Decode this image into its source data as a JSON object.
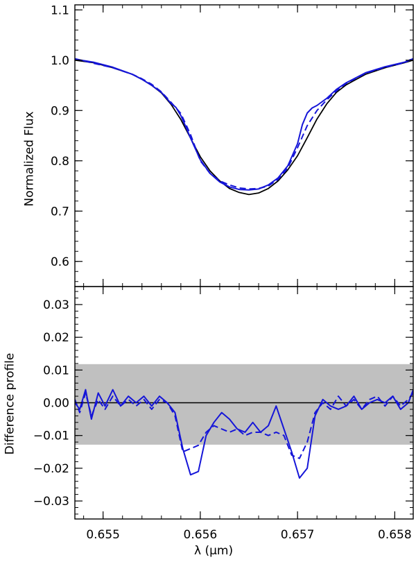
{
  "chart_data": [
    {
      "type": "line",
      "ylabel": "Normalized Flux",
      "xlim": [
        0.65471,
        0.65819
      ],
      "ylim": [
        0.55,
        1.11
      ],
      "x_ticks": [
        0.655,
        0.656,
        0.657,
        0.658
      ],
      "y_ticks": [
        0.6,
        0.7,
        0.8,
        0.9,
        1.0,
        1.1
      ],
      "y_tick_labels": [
        "0.6",
        "0.7",
        "0.8",
        "0.9",
        "1.0",
        "1.1"
      ],
      "series": [
        {
          "color": "#000000",
          "style": "solid",
          "x": [
            0.65471,
            0.6549,
            0.6551,
            0.6553,
            0.6554,
            0.6555,
            0.6556,
            0.6557,
            0.6558,
            0.6559,
            0.656,
            0.6561,
            0.6562,
            0.6563,
            0.6564,
            0.6565,
            0.6566,
            0.6567,
            0.6568,
            0.6569,
            0.657,
            0.6571,
            0.6572,
            0.6573,
            0.6574,
            0.6575,
            0.6577,
            0.6579,
            0.6581,
            0.65819
          ],
          "y": [
            1.0,
            0.995,
            0.985,
            0.972,
            0.962,
            0.95,
            0.935,
            0.912,
            0.882,
            0.845,
            0.808,
            0.78,
            0.76,
            0.745,
            0.737,
            0.733,
            0.736,
            0.745,
            0.76,
            0.782,
            0.81,
            0.846,
            0.883,
            0.913,
            0.936,
            0.951,
            0.972,
            0.985,
            0.995,
            1.0
          ]
        },
        {
          "color": "#1515d8",
          "style": "solid",
          "x": [
            0.65471,
            0.6549,
            0.6551,
            0.6553,
            0.6554,
            0.6555,
            0.6556,
            0.6557,
            0.65575,
            0.6558,
            0.65585,
            0.6559,
            0.656,
            0.6561,
            0.6562,
            0.6563,
            0.6564,
            0.6565,
            0.6566,
            0.6567,
            0.6568,
            0.6569,
            0.657,
            0.65705,
            0.6571,
            0.65715,
            0.6572,
            0.6573,
            0.6574,
            0.6575,
            0.6577,
            0.6579,
            0.6581,
            0.65819
          ],
          "y": [
            1.002,
            0.996,
            0.986,
            0.972,
            0.962,
            0.95,
            0.936,
            0.914,
            0.906,
            0.89,
            0.868,
            0.845,
            0.802,
            0.775,
            0.758,
            0.748,
            0.743,
            0.742,
            0.744,
            0.752,
            0.766,
            0.79,
            0.834,
            0.872,
            0.895,
            0.905,
            0.91,
            0.924,
            0.942,
            0.955,
            0.975,
            0.987,
            0.996,
            1.003
          ]
        },
        {
          "color": "#1515d8",
          "style": "dashed",
          "x": [
            0.65471,
            0.6549,
            0.6551,
            0.6553,
            0.6554,
            0.6555,
            0.6556,
            0.6557,
            0.6558,
            0.6559,
            0.656,
            0.6561,
            0.6562,
            0.6563,
            0.6564,
            0.6565,
            0.6566,
            0.6567,
            0.6568,
            0.6569,
            0.657,
            0.6571,
            0.6572,
            0.6573,
            0.6574,
            0.6575,
            0.6577,
            0.6579,
            0.6581,
            0.65819
          ],
          "y": [
            1.003,
            0.994,
            0.985,
            0.972,
            0.963,
            0.952,
            0.937,
            0.916,
            0.894,
            0.852,
            0.8,
            0.775,
            0.76,
            0.752,
            0.746,
            0.744,
            0.745,
            0.75,
            0.763,
            0.786,
            0.826,
            0.87,
            0.9,
            0.921,
            0.939,
            0.954,
            0.974,
            0.986,
            0.995,
            1.004
          ]
        }
      ]
    },
    {
      "type": "line",
      "ylabel": "Difference profile",
      "xlabel": "λ (μm)",
      "xlim": [
        0.65471,
        0.65819
      ],
      "ylim": [
        -0.0355,
        0.0355
      ],
      "x_ticks": [
        0.655,
        0.656,
        0.657,
        0.658
      ],
      "x_tick_labels": [
        "0.655",
        "0.656",
        "0.657",
        "0.658"
      ],
      "y_ticks": [
        -0.03,
        -0.02,
        -0.01,
        0.0,
        0.01,
        0.02,
        0.03
      ],
      "y_tick_labels": [
        "−0.03",
        "−0.02",
        "−0.01",
        "0.00",
        "0.01",
        "0.02",
        "0.03"
      ],
      "shaded_band": {
        "y_min": -0.0128,
        "y_max": 0.0118,
        "color": "#c0c0c0"
      },
      "zero_line_color": "#000000",
      "series": [
        {
          "color": "#1515d8",
          "style": "solid",
          "x": [
            0.65471,
            0.65476,
            0.65482,
            0.65488,
            0.65495,
            0.65502,
            0.6551,
            0.65518,
            0.65526,
            0.65534,
            0.65542,
            0.6555,
            0.65558,
            0.65566,
            0.65574,
            0.65582,
            0.6559,
            0.65598,
            0.65606,
            0.65614,
            0.65622,
            0.6563,
            0.65638,
            0.65646,
            0.65654,
            0.65662,
            0.6567,
            0.65678,
            0.65686,
            0.65694,
            0.65702,
            0.6571,
            0.65718,
            0.65726,
            0.65734,
            0.65742,
            0.6575,
            0.65758,
            0.65766,
            0.65774,
            0.65782,
            0.6579,
            0.65798,
            0.65806,
            0.65814,
            0.65819
          ],
          "y": [
            0.0,
            -0.002,
            0.004,
            -0.005,
            0.003,
            -0.001,
            0.004,
            -0.001,
            0.002,
            0.0,
            0.002,
            -0.001,
            0.002,
            0.0,
            -0.003,
            -0.014,
            -0.022,
            -0.021,
            -0.01,
            -0.006,
            -0.003,
            -0.005,
            -0.008,
            -0.009,
            -0.006,
            -0.009,
            -0.007,
            -0.001,
            -0.008,
            -0.015,
            -0.023,
            -0.02,
            -0.004,
            0.001,
            -0.001,
            -0.002,
            -0.001,
            0.002,
            -0.002,
            0.0,
            0.001,
            0.0,
            0.002,
            -0.002,
            0.0,
            0.004
          ]
        },
        {
          "color": "#1515d8",
          "style": "dashed",
          "x": [
            0.65471,
            0.65476,
            0.65482,
            0.65488,
            0.65495,
            0.65502,
            0.6551,
            0.65518,
            0.65526,
            0.65534,
            0.65542,
            0.6555,
            0.65558,
            0.65566,
            0.65574,
            0.65582,
            0.6559,
            0.65598,
            0.65606,
            0.65614,
            0.65622,
            0.6563,
            0.65638,
            0.65646,
            0.65654,
            0.65662,
            0.6567,
            0.65678,
            0.65686,
            0.65694,
            0.65702,
            0.6571,
            0.65718,
            0.65726,
            0.65734,
            0.65742,
            0.6575,
            0.65758,
            0.65766,
            0.65774,
            0.65782,
            0.6579,
            0.65798,
            0.65806,
            0.65814,
            0.65819
          ],
          "y": [
            0.001,
            -0.003,
            0.003,
            -0.004,
            0.001,
            -0.002,
            0.002,
            -0.001,
            0.001,
            -0.001,
            0.001,
            -0.002,
            0.001,
            0.0,
            -0.004,
            -0.015,
            -0.014,
            -0.013,
            -0.009,
            -0.007,
            -0.008,
            -0.009,
            -0.008,
            -0.01,
            -0.009,
            -0.009,
            -0.01,
            -0.009,
            -0.01,
            -0.016,
            -0.017,
            -0.012,
            -0.003,
            0.0,
            -0.002,
            0.002,
            -0.001,
            0.001,
            -0.002,
            0.001,
            0.002,
            -0.001,
            0.002,
            -0.001,
            0.001,
            0.003
          ]
        }
      ]
    }
  ]
}
